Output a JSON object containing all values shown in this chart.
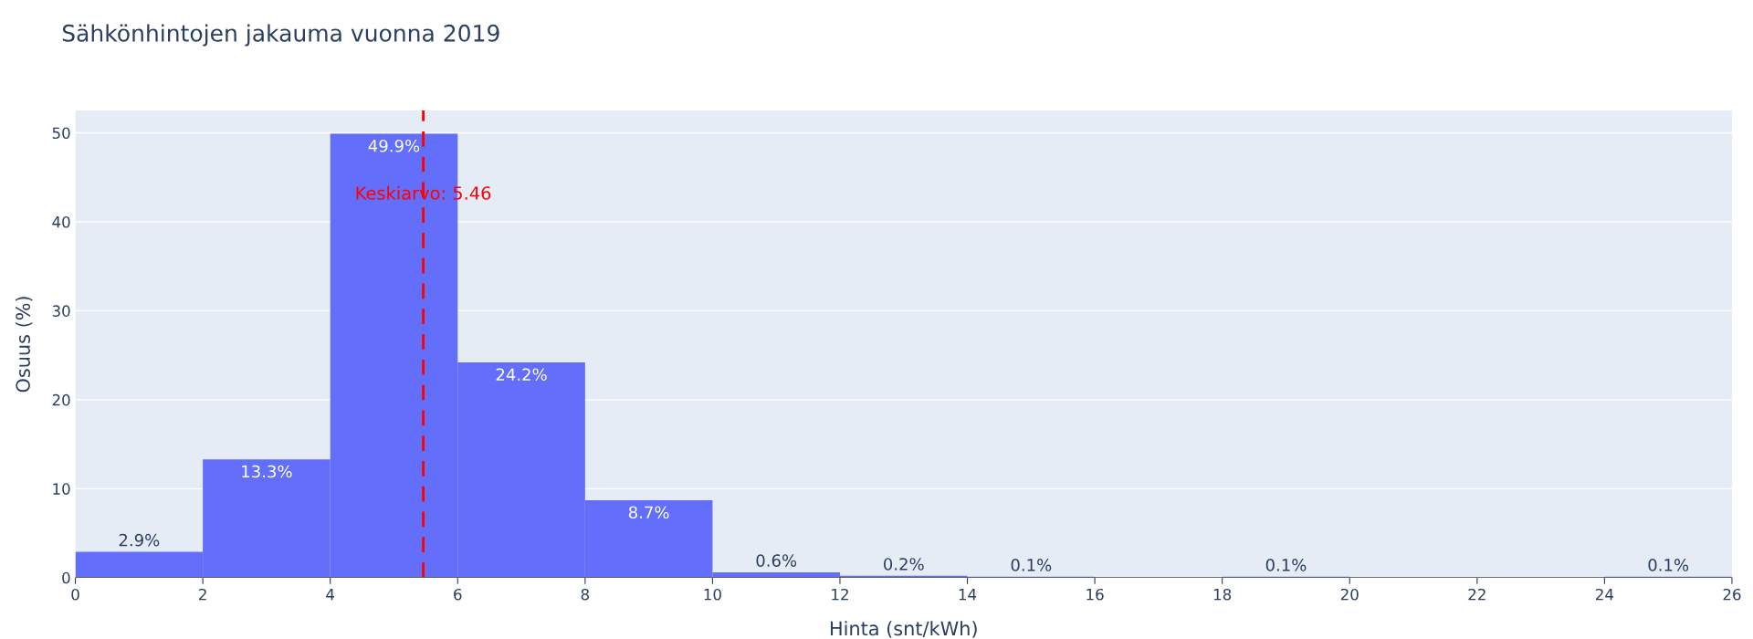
{
  "chart_data": {
    "type": "histogram",
    "title": "Sähkönhintojen jakauma vuonna 2019",
    "xlabel": "Hinta (snt/kWh)",
    "ylabel": "Osuus (%)",
    "bins": [
      0,
      2,
      4,
      6,
      8,
      10,
      12,
      14,
      16,
      18,
      20,
      22,
      24,
      26
    ],
    "values": [
      2.9,
      13.3,
      49.9,
      24.2,
      8.7,
      0.6,
      0.2,
      0.1,
      0,
      0.1,
      0,
      0,
      0.1
    ],
    "value_labels": [
      "2.9%",
      "13.3%",
      "49.9%",
      "24.2%",
      "8.7%",
      "0.6%",
      "0.2%",
      "0.1%",
      null,
      "0.1%",
      null,
      null,
      "0.1%"
    ],
    "color": "#636efa",
    "xlim": [
      0,
      26
    ],
    "xticks": [
      0,
      2,
      4,
      6,
      8,
      10,
      12,
      14,
      16,
      18,
      20,
      22,
      24,
      26
    ],
    "ylim": [
      0,
      52.5
    ],
    "yticks": [
      0,
      10,
      20,
      30,
      40,
      50
    ],
    "grid": "y",
    "ref_lines": [
      {
        "axis": "x",
        "value": 5.46,
        "label": "Keskiarvo: 5.46",
        "color": "#ff0000",
        "line_style": "dashed"
      }
    ]
  }
}
